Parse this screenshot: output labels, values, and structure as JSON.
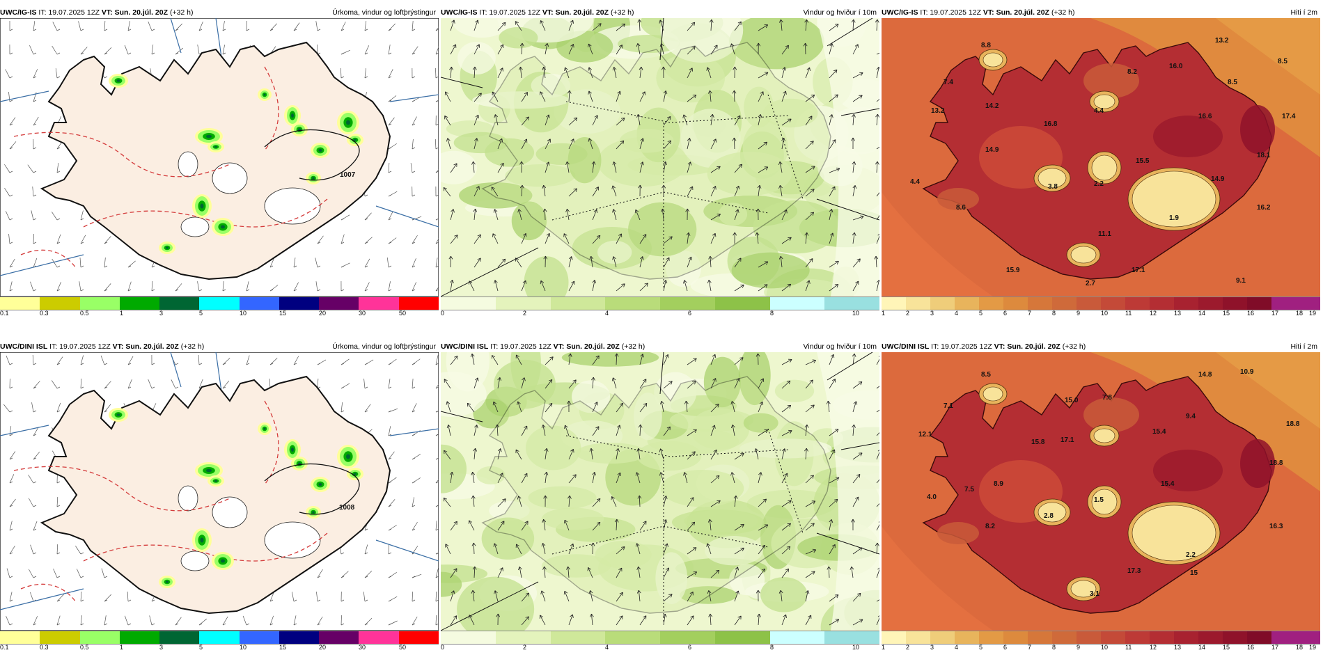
{
  "panels": [
    {
      "id": "p1",
      "model": "UWC/IG-IS",
      "it": "IT: 19.07.2025 12Z",
      "vt": "VT: Sun. 20.júl. 20Z",
      "lead": "(+32 h)",
      "title": "Úrkoma, vindur og loftþrýstingur",
      "kind": "precip",
      "cbar_colors": [
        "#ffff99",
        "#cccc00",
        "#99ff66",
        "#00aa00",
        "#006633",
        "#00ffff",
        "#3366ff",
        "#000080",
        "#660066",
        "#ff3399",
        "#ff0000"
      ],
      "ticks": [
        "0.1",
        "0.3",
        "0.5",
        "1",
        "3",
        "5",
        "10",
        "15",
        "20",
        "30",
        "50"
      ],
      "labels": [
        {
          "text": "1007",
          "kind": "pressure"
        }
      ]
    },
    {
      "id": "p2",
      "model": "UWC/IG-IS",
      "it": "IT: 19.07.2025 12Z",
      "vt": "VT: Sun. 20.júl. 20Z",
      "lead": "(+32 h)",
      "title": "Vindur og hviður í 10m",
      "kind": "wind",
      "cbar_colors": [
        "#f5fbe0",
        "#e4f3bc",
        "#cfe89a",
        "#b9dc7a",
        "#a3cf5e",
        "#8dc248",
        "#ccffff",
        "#99e0e0"
      ],
      "ticks": [
        "0",
        "2",
        "4",
        "6",
        "8",
        "10"
      ],
      "labels": []
    },
    {
      "id": "p3",
      "model": "UWC/IG-IS",
      "it": "IT: 19.07.2025 12Z",
      "vt": "VT: Sun. 20.júl. 20Z",
      "lead": "(+32 h)",
      "title": "Hiti í 2m",
      "kind": "temp",
      "cbar_colors": [
        "#fff5b8",
        "#f8e39a",
        "#efcd7a",
        "#e8b45c",
        "#e39a45",
        "#dd8a3d",
        "#d6773a",
        "#cf6a3a",
        "#c95a3a",
        "#c44a38",
        "#bd3a36",
        "#b42e33",
        "#a82230",
        "#9c1a2d",
        "#8f122a",
        "#800c28",
        "#a02080",
        "#a02080"
      ],
      "ticks": [
        "1",
        "2",
        "3",
        "4",
        "5",
        "6",
        "7",
        "8",
        "9",
        "10",
        "11",
        "12",
        "13",
        "14",
        "15",
        "16",
        "17",
        "18",
        "19"
      ],
      "labels": [
        {
          "text": "8.8"
        },
        {
          "text": "13.2"
        },
        {
          "text": "8.5"
        },
        {
          "text": "7.4"
        },
        {
          "text": "16.0"
        },
        {
          "text": "8.2"
        },
        {
          "text": "8.5"
        },
        {
          "text": "13.2"
        },
        {
          "text": "14.2"
        },
        {
          "text": "4.4"
        },
        {
          "text": "16.6"
        },
        {
          "text": "17.4"
        },
        {
          "text": "16.8"
        },
        {
          "text": "14.9"
        },
        {
          "text": "15.5"
        },
        {
          "text": "18.1"
        },
        {
          "text": "4.4"
        },
        {
          "text": "3.8"
        },
        {
          "text": "2.2"
        },
        {
          "text": "14.9"
        },
        {
          "text": "8.6"
        },
        {
          "text": "16.2"
        },
        {
          "text": "1.9"
        },
        {
          "text": "11.1"
        },
        {
          "text": "15.9"
        },
        {
          "text": "17.1"
        },
        {
          "text": "9.1"
        },
        {
          "text": "2.7"
        }
      ]
    },
    {
      "id": "p4",
      "model": "UWC/DINI ISL",
      "it": "IT: 19.07.2025 12Z",
      "vt": "VT: Sun. 20.júl. 20Z",
      "lead": "(+32 h)",
      "title": "Úrkoma, vindur og loftþrýstingur",
      "kind": "precip",
      "cbar_colors": [
        "#ffff99",
        "#cccc00",
        "#99ff66",
        "#00aa00",
        "#006633",
        "#00ffff",
        "#3366ff",
        "#000080",
        "#660066",
        "#ff3399",
        "#ff0000"
      ],
      "ticks": [
        "0.1",
        "0.3",
        "0.5",
        "1",
        "3",
        "5",
        "10",
        "15",
        "20",
        "30",
        "50"
      ],
      "labels": [
        {
          "text": "1008",
          "kind": "pressure"
        }
      ]
    },
    {
      "id": "p5",
      "model": "UWC/DINI ISL",
      "it": "IT: 19.07.2025 12Z",
      "vt": "VT: Sun. 20.júl. 20Z",
      "lead": "(+32 h)",
      "title": "Vindur og hviður í 10m",
      "kind": "wind",
      "cbar_colors": [
        "#f5fbe0",
        "#e4f3bc",
        "#cfe89a",
        "#b9dc7a",
        "#a3cf5e",
        "#8dc248",
        "#ccffff",
        "#99e0e0"
      ],
      "ticks": [
        "0",
        "2",
        "4",
        "6",
        "8",
        "10"
      ],
      "labels": []
    },
    {
      "id": "p6",
      "model": "UWC/DINI ISL",
      "it": "IT: 19.07.2025 12Z",
      "vt": "VT: Sun. 20.júl. 20Z",
      "lead": "(+32 h)",
      "title": "Hiti í 2m",
      "kind": "temp",
      "cbar_colors": [
        "#fff5b8",
        "#f8e39a",
        "#efcd7a",
        "#e8b45c",
        "#e39a45",
        "#dd8a3d",
        "#d6773a",
        "#cf6a3a",
        "#c95a3a",
        "#c44a38",
        "#bd3a36",
        "#b42e33",
        "#a82230",
        "#9c1a2d",
        "#8f122a",
        "#800c28",
        "#a02080",
        "#a02080"
      ],
      "ticks": [
        "1",
        "2",
        "3",
        "4",
        "5",
        "6",
        "7",
        "8",
        "9",
        "10",
        "11",
        "12",
        "13",
        "14",
        "15",
        "16",
        "17",
        "18",
        "19"
      ],
      "labels": [
        {
          "text": "8.5"
        },
        {
          "text": "14.8"
        },
        {
          "text": "10.9"
        },
        {
          "text": "7.1"
        },
        {
          "text": "15.0"
        },
        {
          "text": "7.8"
        },
        {
          "text": "12.1"
        },
        {
          "text": "9.4"
        },
        {
          "text": "18.8"
        },
        {
          "text": "15.8"
        },
        {
          "text": "17.1"
        },
        {
          "text": "15.4"
        },
        {
          "text": "18.8"
        },
        {
          "text": "7.5"
        },
        {
          "text": "8.9"
        },
        {
          "text": "15.4"
        },
        {
          "text": "4.0"
        },
        {
          "text": "1.5"
        },
        {
          "text": "2.8"
        },
        {
          "text": "8.2"
        },
        {
          "text": "16.3"
        },
        {
          "text": "2.2"
        },
        {
          "text": "17.3"
        },
        {
          "text": "15"
        },
        {
          "text": "3.1"
        }
      ]
    }
  ]
}
